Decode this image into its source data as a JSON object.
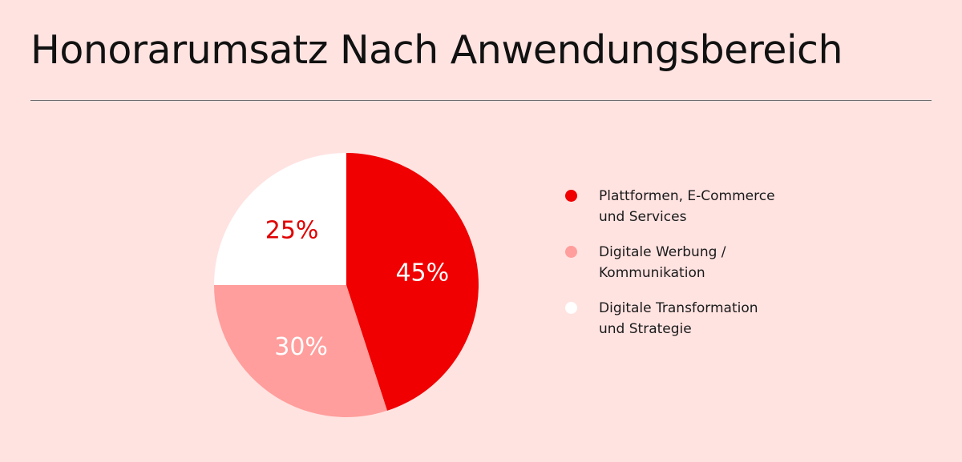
{
  "page": {
    "title": "Honorarumsatz Nach Anwendungsbereich"
  },
  "colors": {
    "background": "#FFE3E1",
    "divider": "#6E6E6E",
    "series_primary": "#F00000",
    "series_secondary": "#FF9E9C",
    "series_tertiary": "#FFFFFF",
    "label_light": "#FFFFFF",
    "label_dark": "#E00000"
  },
  "chart_data": {
    "type": "pie",
    "title": "Honorarumsatz Nach Anwendungsbereich",
    "legend_position": "right",
    "slices": [
      {
        "legend_lines": [
          "Plattformen, E-Commerce",
          "und Services"
        ],
        "value": 45,
        "label": "45%",
        "color": "#F00000",
        "label_color": "#FFFFFF"
      },
      {
        "legend_lines": [
          "Digitale Werbung /",
          "Kommunikation"
        ],
        "value": 30,
        "label": "30%",
        "color": "#FF9E9C",
        "label_color": "#FFFFFF"
      },
      {
        "legend_lines": [
          "Digitale Transformation",
          "und Strategie"
        ],
        "value": 25,
        "label": "25%",
        "color": "#FFFFFF",
        "label_color": "#E00000"
      }
    ]
  }
}
